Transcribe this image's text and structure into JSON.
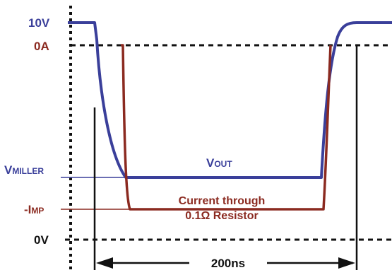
{
  "labels": {
    "v10": "10V",
    "a0": "0A",
    "v_miller_main": "V",
    "v_miller_sub": "MILLER",
    "v_out_main": "V",
    "v_out_sub": "OUT",
    "i_mp_main": "-I",
    "i_mp_sub": "MP",
    "v0": "0V",
    "current_line1": "Current through",
    "current_line2": "0.1Ω Resistor",
    "duration": "200ns"
  },
  "colors": {
    "voltage_trace": "#3a3f9a",
    "current_trace": "#8b2a20",
    "axis": "#111111"
  }
}
